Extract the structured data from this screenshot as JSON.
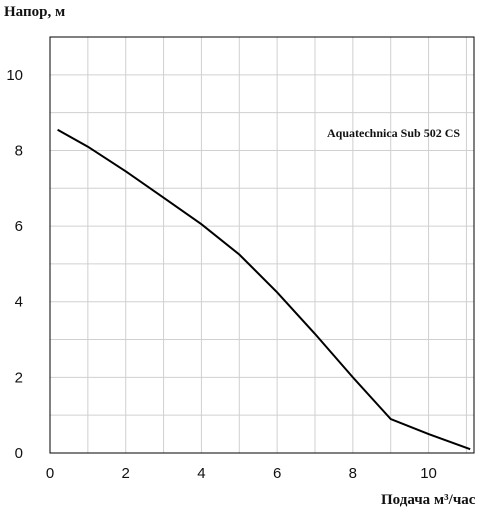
{
  "chart_data": {
    "type": "line",
    "ylabel": "Напор, м",
    "xlabel": "Подача м³/час",
    "xlim": [
      0,
      11.2
    ],
    "ylim": [
      0,
      11
    ],
    "x_ticks": [
      0,
      2,
      4,
      6,
      8,
      10
    ],
    "y_ticks": [
      0,
      2,
      4,
      6,
      8,
      10
    ],
    "grid": true,
    "series": [
      {
        "name": "Aquatechnica Sub 502 CS",
        "color": "#000000",
        "x": [
          0.2,
          1,
          2,
          3,
          4,
          5,
          6,
          7,
          8,
          9,
          10,
          11.1
        ],
        "y": [
          8.55,
          8.1,
          7.45,
          6.75,
          6.05,
          5.25,
          4.25,
          3.15,
          2.0,
          0.9,
          0.5,
          0.1
        ]
      }
    ]
  }
}
